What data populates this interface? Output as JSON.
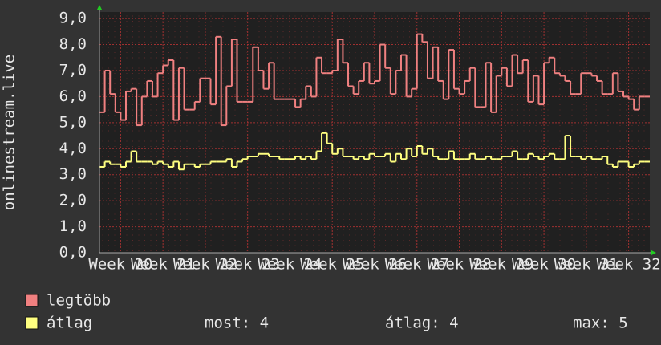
{
  "chart_data": {
    "type": "step-line",
    "y_label": "onlinestream.live",
    "xlim": [
      19.5,
      32.5
    ],
    "xticks": [
      {
        "value": 20,
        "label": "Week 20"
      },
      {
        "value": 21,
        "label": "Week 21"
      },
      {
        "value": 22,
        "label": "Week 22"
      },
      {
        "value": 23,
        "label": "Week 23"
      },
      {
        "value": 24,
        "label": "Week 24"
      },
      {
        "value": 25,
        "label": "Week 25"
      },
      {
        "value": 26,
        "label": "Week 26"
      },
      {
        "value": 27,
        "label": "Week 27"
      },
      {
        "value": 28,
        "label": "Week 28"
      },
      {
        "value": 29,
        "label": "Week 29"
      },
      {
        "value": 30,
        "label": "Week 30"
      },
      {
        "value": 31,
        "label": "Week 31"
      },
      {
        "value": 32,
        "label": "Week 32"
      }
    ],
    "ylim": [
      0,
      9.25
    ],
    "yticks": [
      {
        "value": 0,
        "label": "0,0"
      },
      {
        "value": 1,
        "label": "1,0"
      },
      {
        "value": 2,
        "label": "2,0"
      },
      {
        "value": 3,
        "label": "3,0"
      },
      {
        "value": 4,
        "label": "4,0"
      },
      {
        "value": 5,
        "label": "5,0"
      },
      {
        "value": 6,
        "label": "6,0"
      },
      {
        "value": 7,
        "label": "7,0"
      },
      {
        "value": 8,
        "label": "8,0"
      },
      {
        "value": 9,
        "label": "9,0"
      }
    ],
    "grid": true,
    "x": [
      19.5,
      19.625,
      19.75,
      19.875,
      20,
      20.125,
      20.25,
      20.375,
      20.5,
      20.625,
      20.75,
      20.875,
      21,
      21.125,
      21.25,
      21.375,
      21.5,
      21.625,
      21.75,
      21.875,
      22,
      22.125,
      22.25,
      22.375,
      22.5,
      22.625,
      22.75,
      22.875,
      23,
      23.125,
      23.25,
      23.375,
      23.5,
      23.625,
      23.75,
      23.875,
      24,
      24.125,
      24.25,
      24.375,
      24.5,
      24.625,
      24.75,
      24.875,
      25,
      25.125,
      25.25,
      25.375,
      25.5,
      25.625,
      25.75,
      25.875,
      26,
      26.125,
      26.25,
      26.375,
      26.5,
      26.625,
      26.75,
      26.875,
      27,
      27.125,
      27.25,
      27.375,
      27.5,
      27.625,
      27.75,
      27.875,
      28,
      28.125,
      28.25,
      28.375,
      28.5,
      28.625,
      28.75,
      28.875,
      29,
      29.125,
      29.25,
      29.375,
      29.5,
      29.625,
      29.75,
      29.875,
      30,
      30.125,
      30.25,
      30.375,
      30.5,
      30.625,
      30.75,
      30.875,
      31,
      31.125,
      31.25,
      31.375,
      31.5,
      31.625,
      31.75,
      31.875,
      32,
      32.125,
      32.25,
      32.375
    ],
    "series": [
      {
        "name": "legtöbb",
        "color": "#f08080",
        "values": [
          5.4,
          7.0,
          6.1,
          5.4,
          5.1,
          6.2,
          6.3,
          4.9,
          6.0,
          6.6,
          6.0,
          6.9,
          7.2,
          7.4,
          5.1,
          7.1,
          5.5,
          5.5,
          5.8,
          6.7,
          6.7,
          5.7,
          8.3,
          4.9,
          6.4,
          8.2,
          5.8,
          5.8,
          5.8,
          7.9,
          7.0,
          6.3,
          7.3,
          5.9,
          5.9,
          5.9,
          5.9,
          5.6,
          5.9,
          6.4,
          6.0,
          7.5,
          6.9,
          6.9,
          7.0,
          8.2,
          7.3,
          6.4,
          6.1,
          6.6,
          7.3,
          6.5,
          6.6,
          8.0,
          7.1,
          6.1,
          7.0,
          7.6,
          6.0,
          6.3,
          8.4,
          8.1,
          6.7,
          7.9,
          6.6,
          5.9,
          7.8,
          6.3,
          6.1,
          6.6,
          7.1,
          5.6,
          5.6,
          7.3,
          5.4,
          6.8,
          7.1,
          6.4,
          7.6,
          6.9,
          7.4,
          5.8,
          6.8,
          5.7,
          7.3,
          7.5,
          6.9,
          6.8,
          6.6,
          6.1,
          6.1,
          6.9,
          6.9,
          6.8,
          6.6,
          6.1,
          6.1,
          6.9,
          6.2,
          6.0,
          5.9,
          5.5,
          6.0,
          6.0
        ]
      },
      {
        "name": "átlag",
        "color": "#ffff80",
        "values": [
          3.3,
          3.5,
          3.4,
          3.4,
          3.3,
          3.5,
          3.9,
          3.5,
          3.5,
          3.5,
          3.4,
          3.5,
          3.4,
          3.3,
          3.5,
          3.2,
          3.4,
          3.4,
          3.3,
          3.4,
          3.4,
          3.5,
          3.5,
          3.5,
          3.6,
          3.3,
          3.5,
          3.6,
          3.7,
          3.7,
          3.8,
          3.8,
          3.7,
          3.7,
          3.6,
          3.6,
          3.6,
          3.7,
          3.6,
          3.7,
          3.6,
          3.9,
          4.6,
          4.2,
          3.8,
          4.0,
          3.7,
          3.7,
          3.6,
          3.7,
          3.6,
          3.8,
          3.7,
          3.7,
          3.8,
          3.5,
          3.8,
          3.6,
          4.0,
          3.7,
          4.1,
          3.8,
          4.0,
          3.7,
          3.6,
          3.6,
          3.9,
          3.6,
          3.6,
          3.6,
          3.8,
          3.6,
          3.6,
          3.7,
          3.6,
          3.6,
          3.7,
          3.7,
          3.9,
          3.6,
          3.6,
          3.8,
          3.7,
          3.6,
          3.7,
          3.8,
          3.6,
          3.6,
          4.5,
          3.7,
          3.7,
          3.6,
          3.7,
          3.6,
          3.6,
          3.7,
          3.4,
          3.3,
          3.5,
          3.5,
          3.3,
          3.4,
          3.5,
          3.5
        ]
      }
    ],
    "summary": [
      "most: 4",
      "átlag: 4",
      "max: 5"
    ]
  }
}
